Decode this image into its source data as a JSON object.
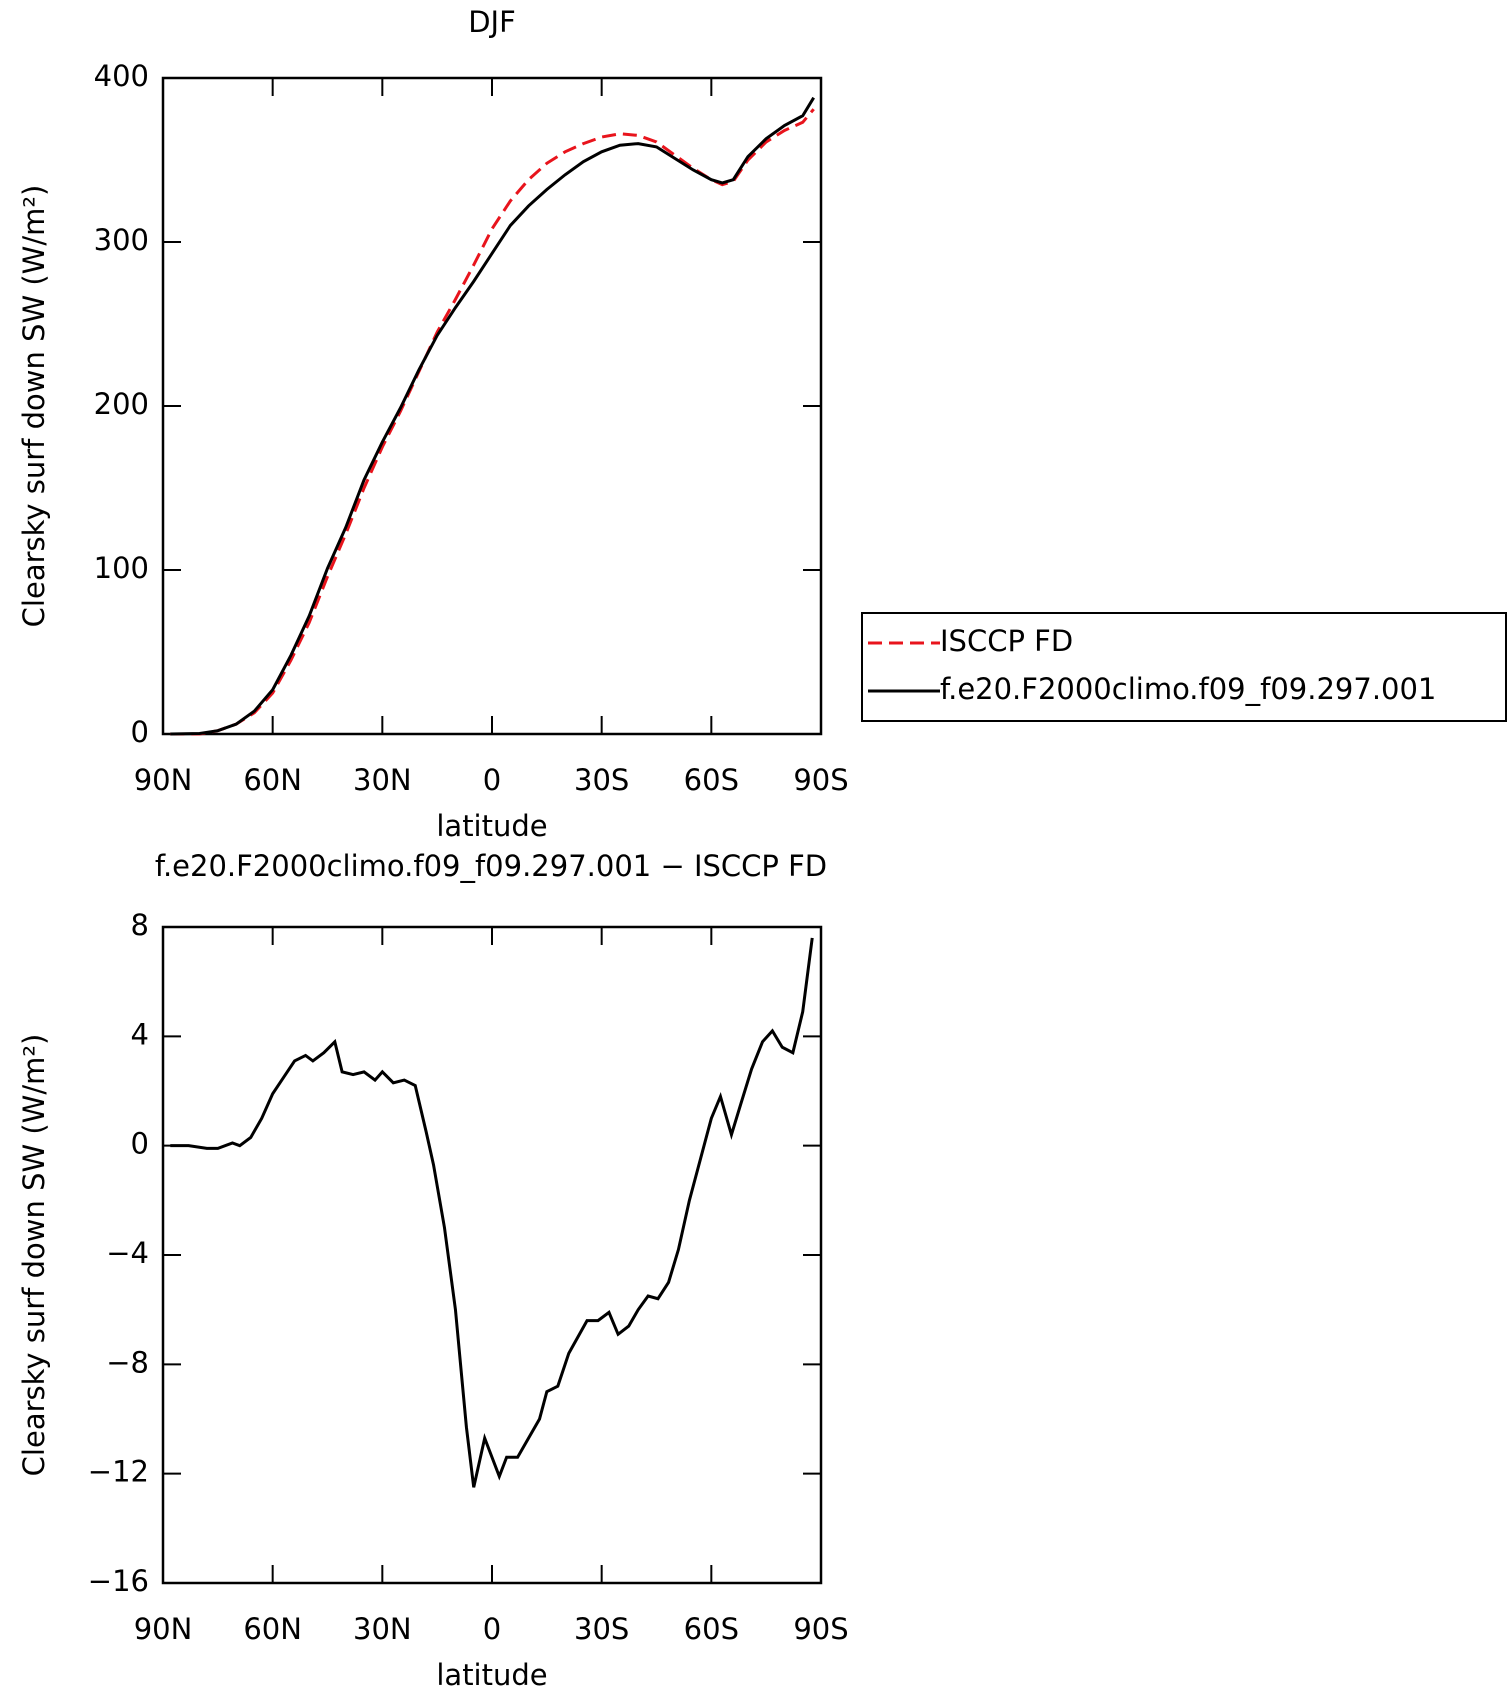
{
  "chart_data": [
    {
      "type": "line",
      "title": "DJF",
      "xlabel": "latitude",
      "ylabel": "Clearsky surf down SW (W/m²)",
      "x": [
        88,
        80,
        75,
        70,
        65,
        60,
        55,
        50,
        45,
        40,
        35,
        30,
        25,
        20,
        15,
        10,
        5,
        0,
        -5,
        -10,
        -15,
        -20,
        -25,
        -30,
        -35,
        -40,
        -45,
        -50,
        -55,
        -60,
        -63,
        -66,
        -70,
        -75,
        -80,
        -85,
        -88
      ],
      "series": [
        {
          "name": "ISCCP FD",
          "color": "#e8141c",
          "style": "dashed",
          "values": [
            0,
            0,
            2,
            6,
            13,
            25,
            45,
            68,
            96,
            122,
            150,
            175,
            197,
            221,
            245,
            265,
            286,
            308,
            325,
            338,
            348,
            355,
            360,
            364,
            366,
            365,
            361,
            353,
            345,
            338,
            335,
            337,
            350,
            361,
            368,
            373,
            381
          ]
        },
        {
          "name": "f.e20.F2000climo.f09_f09.297.001",
          "color": "#000000",
          "style": "solid",
          "values": [
            0,
            0.3,
            2,
            6,
            14,
            27,
            48,
            72,
            101,
            126,
            155,
            178,
            199,
            222,
            243,
            260,
            276,
            293,
            310,
            322,
            332,
            341,
            349,
            355,
            359,
            360,
            358,
            351,
            344,
            338,
            336,
            338,
            352,
            363,
            371,
            377,
            388
          ]
        }
      ],
      "xlim": [
        90,
        -90
      ],
      "xticks": [
        {
          "value": 90,
          "label": "90N"
        },
        {
          "value": 60,
          "label": "60N"
        },
        {
          "value": 30,
          "label": "30N"
        },
        0,
        {
          "value": -30,
          "label": "30S"
        },
        {
          "value": -60,
          "label": "60S"
        },
        {
          "value": -90,
          "label": "90S"
        }
      ],
      "ylim": [
        0,
        400
      ],
      "yticks": [
        0,
        100,
        200,
        300,
        400
      ],
      "legend": "right"
    },
    {
      "type": "line",
      "title": "f.e20.F2000climo.f09_f09.297.001 − ISCCP FD",
      "xlabel": "latitude",
      "ylabel": "Clearsky surf down SW (W/m²)",
      "x": [
        88,
        83,
        78,
        75,
        71,
        69,
        66,
        63,
        60,
        57,
        54,
        51,
        49,
        46,
        43,
        41,
        38,
        35,
        32,
        30,
        27,
        24,
        21,
        18,
        16,
        13,
        10,
        7,
        5,
        2,
        -2,
        -4,
        -7,
        -10,
        -13,
        -15,
        -18,
        -21,
        -23.5,
        -26,
        -29,
        -32,
        -34.5,
        -37.4,
        -40,
        -42.7,
        -45.4,
        -48.3,
        -51,
        -54,
        -57,
        -60,
        -62.5,
        -65.5,
        -68,
        -71,
        -74,
        -76.7,
        -79.4,
        -82.3,
        -85,
        -87.6
      ],
      "series": [
        {
          "color": "#000000",
          "style": "solid",
          "values": [
            0,
            0,
            -0.1,
            -0.1,
            0.1,
            0,
            0.3,
            1,
            1.9,
            2.5,
            3.1,
            3.3,
            3.1,
            3.4,
            3.8,
            2.7,
            2.6,
            2.7,
            2.4,
            2.7,
            2.3,
            2.4,
            2.2,
            0.5,
            -0.7,
            -3,
            -6,
            -10.3,
            -12.5,
            -10.7,
            -12.1,
            -11.4,
            -11.4,
            -10.7,
            -10,
            -9,
            -8.8,
            -7.6,
            -7,
            -6.4,
            -6.4,
            -6.1,
            -6.9,
            -6.6,
            -6,
            -5.5,
            -5.6,
            -5,
            -3.8,
            -2,
            -0.5,
            1,
            1.8,
            0.4,
            1.5,
            2.8,
            3.8,
            4.2,
            3.6,
            3.4,
            4.9,
            7.6
          ]
        }
      ],
      "xlim": [
        90,
        -90
      ],
      "xticks": [
        {
          "value": 90,
          "label": "90N"
        },
        {
          "value": 60,
          "label": "60N"
        },
        {
          "value": 30,
          "label": "30N"
        },
        0,
        {
          "value": -30,
          "label": "30S"
        },
        {
          "value": -60,
          "label": "60S"
        },
        {
          "value": -90,
          "label": "90S"
        }
      ],
      "ylim": [
        -16,
        8
      ],
      "yticks": [
        {
          "value": -16,
          "label": "−16"
        },
        {
          "value": -12,
          "label": "−12"
        },
        {
          "value": -8,
          "label": "−8"
        },
        {
          "value": -4,
          "label": "−4"
        },
        0,
        4,
        8
      ]
    }
  ]
}
